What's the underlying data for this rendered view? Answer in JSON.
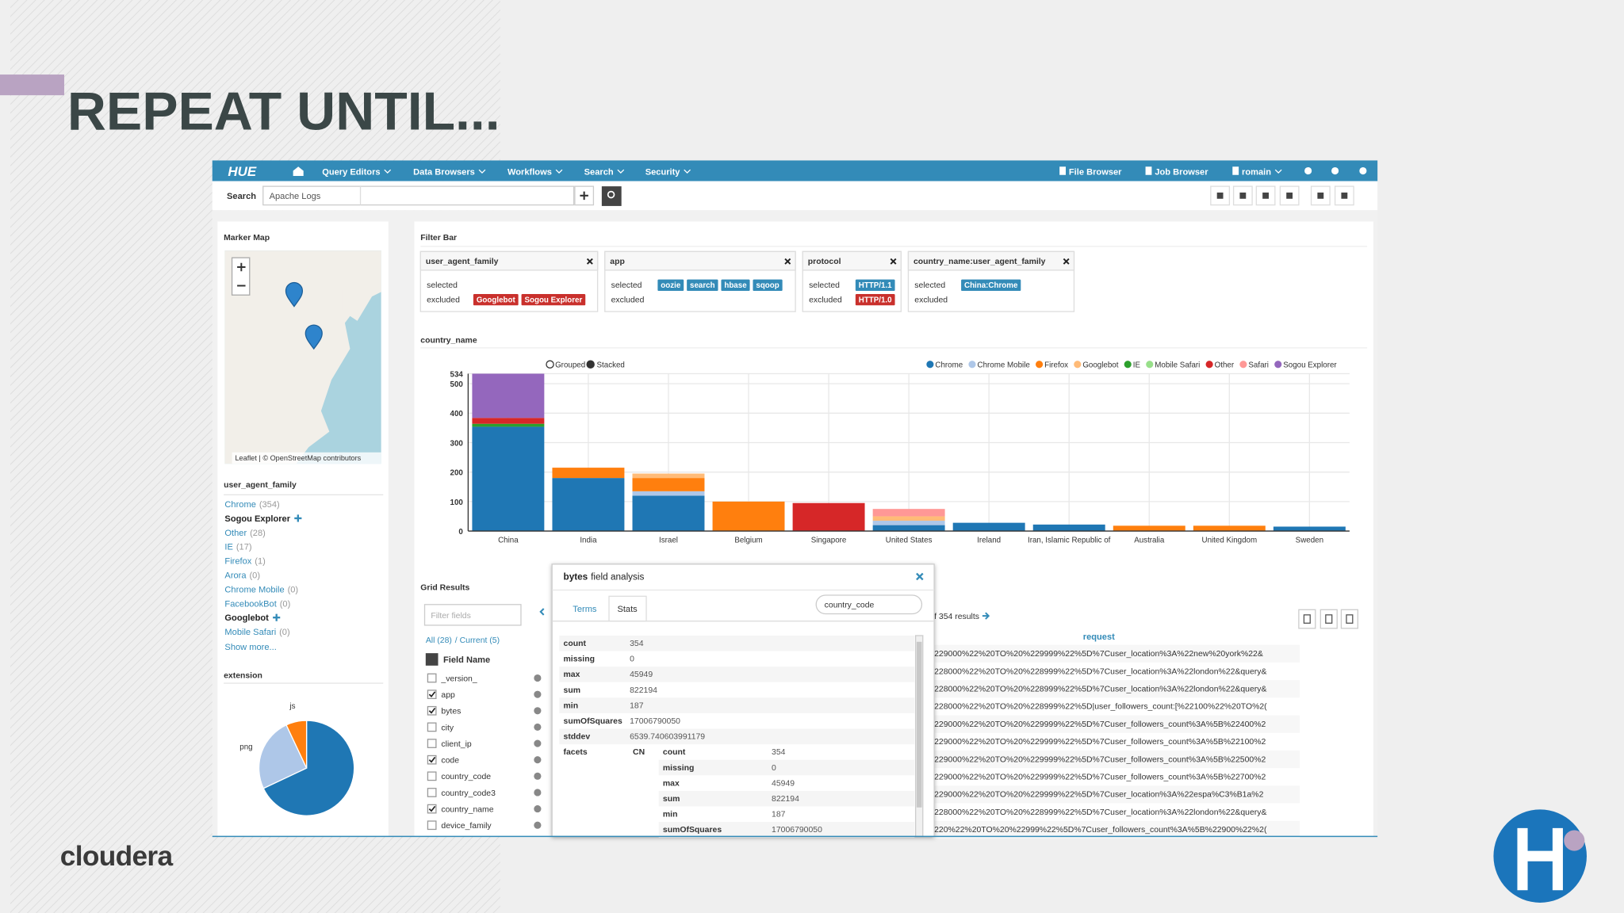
{
  "slide": {
    "title": "REPEAT UNTIL...",
    "brand": "cloudera"
  },
  "navbar": {
    "logo": "HUE",
    "menus": [
      "Query Editors",
      "Data Browsers",
      "Workflows",
      "Search",
      "Security"
    ],
    "right": [
      "File Browser",
      "Job Browser",
      "romain"
    ]
  },
  "search": {
    "label": "Search",
    "value": "Apache Logs"
  },
  "marker_map": {
    "title": "Marker Map",
    "attribution": "Leaflet | © OpenStreetMap contributors"
  },
  "facet": {
    "title": "user_agent_family",
    "items": [
      {
        "label": "Chrome",
        "count": "(354)"
      },
      {
        "label": "Sogou Explorer",
        "selected": true
      },
      {
        "label": "Other",
        "count": "(28)"
      },
      {
        "label": "IE",
        "count": "(17)"
      },
      {
        "label": "Firefox",
        "count": "(1)"
      },
      {
        "label": "Arora",
        "count": "(0)"
      },
      {
        "label": "Chrome Mobile",
        "count": "(0)"
      },
      {
        "label": "FacebookBot",
        "count": "(0)"
      },
      {
        "label": "Googlebot",
        "selected": true
      },
      {
        "label": "Mobile Safari",
        "count": "(0)"
      }
    ],
    "show_more": "Show more..."
  },
  "extension_chart": {
    "type": "pie",
    "title": "extension",
    "categories": [
      null,
      "png",
      "js"
    ],
    "values": [
      68,
      25,
      7
    ],
    "colors": [
      "#1f77b4",
      "#aec7e8",
      "#ff7f0e"
    ]
  },
  "filter_bar": {
    "title": "Filter Bar",
    "selected_label": "selected",
    "excluded_label": "excluded",
    "filters": [
      {
        "name": "user_agent_family",
        "selected": [],
        "excluded": [
          "Googlebot",
          "Sogou Explorer"
        ]
      },
      {
        "name": "app",
        "selected": [
          "oozie",
          "search",
          "hbase",
          "sqoop"
        ],
        "excluded": []
      },
      {
        "name": "protocol",
        "selected": [
          "HTTP/1.1"
        ],
        "excluded": [
          "HTTP/1.0"
        ]
      },
      {
        "name": "country_name:user_agent_family",
        "selected": [
          "China:Chrome"
        ],
        "excluded": []
      }
    ]
  },
  "chart_data": {
    "type": "bar",
    "title": "country_name",
    "modes": [
      "Grouped",
      "Stacked"
    ],
    "stacked": true,
    "grid": true,
    "categories": [
      "China",
      "India",
      "Israel",
      "Belgium",
      "Singapore",
      "United States",
      "Ireland",
      "Iran, Islamic Republic of",
      "Australia",
      "United Kingdom",
      "Sweden"
    ],
    "series": [
      {
        "name": "Chrome",
        "color": "#1f77b4",
        "values": [
          354,
          180,
          120,
          0,
          0,
          20,
          28,
          22,
          0,
          0,
          15
        ]
      },
      {
        "name": "Chrome Mobile",
        "color": "#aec7e8",
        "values": [
          0,
          0,
          15,
          0,
          0,
          15,
          0,
          0,
          0,
          0,
          0
        ]
      },
      {
        "name": "Firefox",
        "color": "#ff7f0e",
        "values": [
          0,
          35,
          45,
          100,
          0,
          0,
          0,
          0,
          18,
          18,
          0
        ]
      },
      {
        "name": "Googlebot",
        "color": "#ffbb78",
        "values": [
          0,
          0,
          15,
          0,
          0,
          15,
          0,
          0,
          0,
          0,
          0
        ]
      },
      {
        "name": "IE",
        "color": "#2ca02c",
        "values": [
          10,
          0,
          0,
          0,
          0,
          0,
          0,
          0,
          0,
          0,
          0
        ]
      },
      {
        "name": "Mobile Safari",
        "color": "#98df8a",
        "values": [
          0,
          0,
          0,
          0,
          0,
          0,
          0,
          0,
          0,
          0,
          0
        ]
      },
      {
        "name": "Other",
        "color": "#d62728",
        "values": [
          20,
          0,
          0,
          0,
          95,
          0,
          0,
          0,
          0,
          0,
          0
        ]
      },
      {
        "name": "Safari",
        "color": "#ff9896",
        "values": [
          0,
          0,
          0,
          0,
          0,
          25,
          0,
          0,
          0,
          0,
          0
        ]
      },
      {
        "name": "Sogou Explorer",
        "color": "#9467bd",
        "values": [
          150,
          0,
          0,
          0,
          0,
          0,
          0,
          0,
          0,
          0,
          0
        ]
      }
    ],
    "ylim": [
      0,
      534
    ],
    "yticks": [
      0,
      100,
      200,
      300,
      400,
      500,
      534
    ]
  },
  "grid_results": {
    "title": "Grid Results",
    "filter_placeholder": "Filter fields",
    "all": "All (28)",
    "current": "/ Current (5)",
    "header": "Field Name",
    "fields": [
      {
        "name": "_version_",
        "checked": false
      },
      {
        "name": "app",
        "checked": true
      },
      {
        "name": "bytes",
        "checked": true
      },
      {
        "name": "city",
        "checked": false
      },
      {
        "name": "client_ip",
        "checked": false
      },
      {
        "name": "code",
        "checked": true
      },
      {
        "name": "country_code",
        "checked": false
      },
      {
        "name": "country_code3",
        "checked": false
      },
      {
        "name": "country_name",
        "checked": true
      },
      {
        "name": "device_family",
        "checked": false
      }
    ],
    "results_count": "f 354 results",
    "column": "request",
    "rows": [
      "229000%22%20TO%20%229999%22%5D%7Cuser_location%3A%22new%20york%22&",
      "228000%22%20TO%20%228999%22%5D%7Cuser_location%3A%22london%22&query&",
      "228000%22%20TO%20%228999%22%5D%7Cuser_location%3A%22london%22&query&",
      "228000%22%20TO%20%228999%22%5D|user_followers_count:[%22100%22%20TO%2(",
      "229000%22%20TO%20%229999%22%5D%7Cuser_followers_count%3A%5B%22400%2",
      "229000%22%20TO%20%229999%22%5D%7Cuser_followers_count%3A%5B%22100%2",
      "229000%22%20TO%20%229999%22%5D%7Cuser_followers_count%3A%5B%22500%2",
      "229000%22%20TO%20%229999%22%5D%7Cuser_followers_count%3A%5B%22700%2",
      "229000%22%20TO%20%229999%22%5D%7Cuser_location%3A%22espa%C3%B1a%2",
      "228000%22%20TO%20%228999%22%5D%7Cuser_location%3A%22london%22&query&",
      "220%22%20TO%20%22999%22%5D%7Cuser_followers_count%3A%5B%22900%22%2("
    ]
  },
  "popup": {
    "title_field": "bytes",
    "title_rest": "field analysis",
    "tabs": [
      "Terms",
      "Stats"
    ],
    "input": "country_code",
    "stats": [
      [
        "count",
        "354"
      ],
      [
        "missing",
        "0"
      ],
      [
        "max",
        "45949"
      ],
      [
        "sum",
        "822194"
      ],
      [
        "min",
        "187"
      ],
      [
        "sumOfSquares",
        "17006790050"
      ],
      [
        "stddev",
        "6539.740603991179"
      ]
    ],
    "facets_label": "facets",
    "facet_key": "CN",
    "facet_stats": [
      [
        "count",
        "354"
      ],
      [
        "missing",
        "0"
      ],
      [
        "max",
        "45949"
      ],
      [
        "sum",
        "822194"
      ],
      [
        "min",
        "187"
      ],
      [
        "sumOfSquares",
        "17006790050"
      ]
    ]
  }
}
